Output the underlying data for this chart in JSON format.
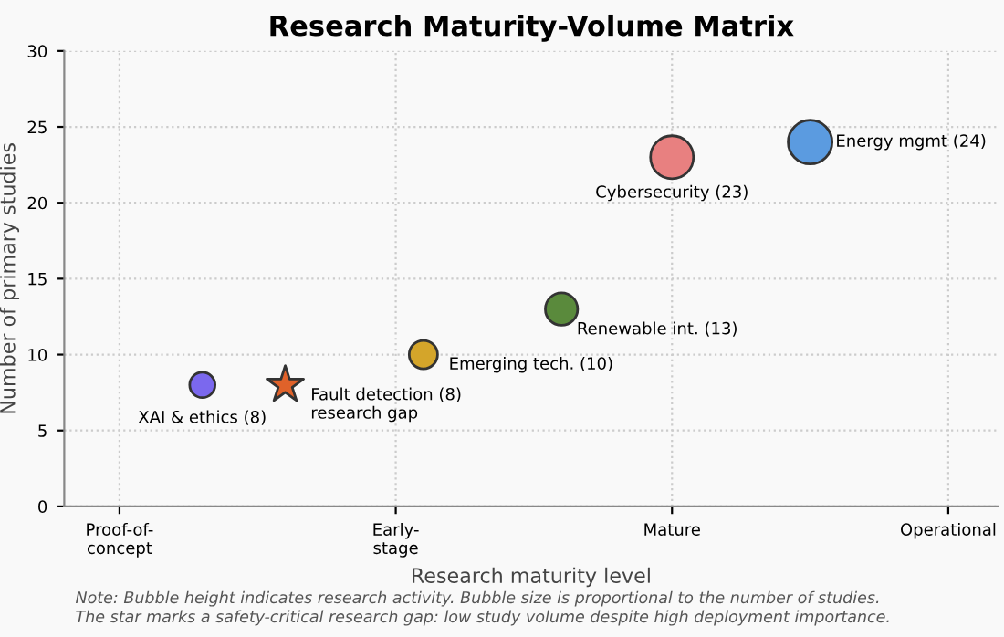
{
  "chart_data": {
    "type": "bubble",
    "title": "Research Maturity-Volume Matrix",
    "xlabel": "Research maturity level",
    "ylabel": "Number of primary studies",
    "categories": [
      "Proof-of-\nconcept",
      null,
      null,
      null,
      null,
      null,
      null,
      null,
      null,
      null,
      "Early-\nstage",
      null,
      null,
      null,
      null,
      null,
      null,
      null,
      null,
      null,
      "Mature",
      null,
      null,
      null,
      null,
      null,
      null,
      null,
      null,
      null,
      "Operational"
    ],
    "ylim": [
      0,
      30
    ],
    "yticks": [
      0,
      5,
      10,
      15,
      20,
      25,
      30
    ],
    "grid": true,
    "series": [
      {
        "values": [
          null,
          null,
          null,
          8,
          null,
          null,
          null,
          null,
          null,
          null,
          null,
          10,
          null,
          null,
          null,
          null,
          13,
          null,
          null,
          null,
          23,
          null,
          null,
          null,
          null,
          24,
          null,
          null,
          null,
          null,
          null
        ],
        "sizes": [
          null,
          null,
          null,
          0.333,
          null,
          null,
          null,
          null,
          null,
          null,
          null,
          0.417,
          null,
          null,
          null,
          null,
          0.542,
          null,
          null,
          null,
          0.958,
          null,
          null,
          null,
          null,
          1,
          null,
          null,
          null,
          null,
          null
        ],
        "colors": [
          null,
          null,
          null,
          "#7b68ee",
          null,
          null,
          null,
          null,
          null,
          null,
          null,
          "#d4a52a",
          null,
          null,
          null,
          null,
          "#5a8a3c",
          null,
          null,
          null,
          "#e88080",
          null,
          null,
          null,
          null,
          "#5b9be0",
          null,
          null,
          null,
          null,
          null
        ],
        "value_labels": [
          null,
          null,
          null,
          "XAI & ethics (8)",
          null,
          null,
          null,
          null,
          null,
          null,
          null,
          "Emerging tech. (10)",
          null,
          null,
          null,
          null,
          "Renewable int. (13)",
          null,
          null,
          null,
          "Cybersecurity (23)",
          null,
          null,
          null,
          null,
          "Energy mgmt (24)",
          null,
          null,
          null,
          null,
          null
        ]
      },
      {
        "type": "scatter",
        "marker": "star",
        "color": "#e0622a",
        "values": [
          null,
          null,
          null,
          null,
          null,
          null,
          8,
          null,
          null,
          null,
          null,
          null,
          null,
          null,
          null,
          null,
          null,
          null,
          null,
          null,
          null,
          null,
          null,
          null,
          null,
          null,
          null,
          null,
          null,
          null,
          null
        ],
        "value_labels": [
          null,
          null,
          null,
          null,
          null,
          null,
          "Fault detection (8)\nresearch gap",
          null,
          null,
          null,
          null,
          null,
          null,
          null,
          null,
          null,
          null,
          null,
          null,
          null,
          null,
          null,
          null,
          null,
          null,
          null,
          null,
          null,
          null,
          null,
          null
        ]
      }
    ],
    "annotations": [
      "Note: Bubble height indicates research activity. Bubble size is proportional to the number of studies.\nThe star marks a safety-critical research gap: low study volume despite high deployment importance."
    ]
  }
}
